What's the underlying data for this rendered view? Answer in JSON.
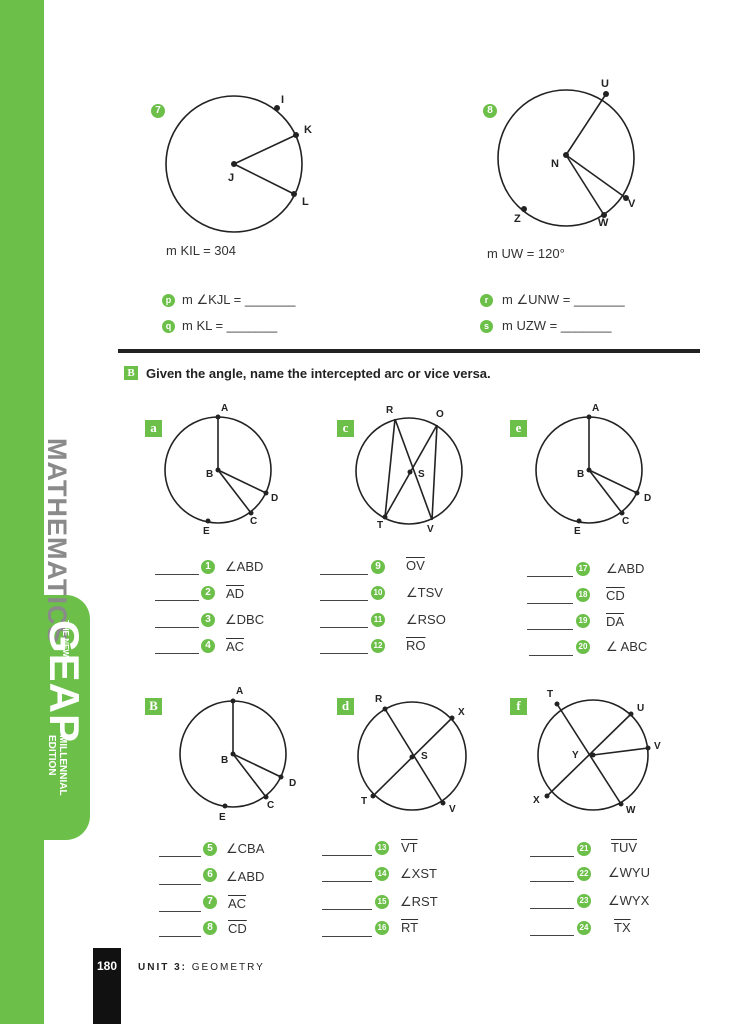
{
  "sidebar": {
    "subject": "MATHEMATICS",
    "brand_new": "THE NEW",
    "brand": "GEAP",
    "brand_edition_1": "MILLENNIAL",
    "brand_edition_2": "EDITION"
  },
  "problems_top": {
    "p7": {
      "number": "7",
      "given": "m KIL = 304",
      "points": [
        "I",
        "K",
        "J",
        "L"
      ]
    },
    "p8": {
      "number": "8",
      "given": "m UW = 120°",
      "points": [
        "U",
        "N",
        "V",
        "Z",
        "W"
      ]
    },
    "questions": [
      {
        "letter": "p",
        "text": "m ∠KJL = _______"
      },
      {
        "letter": "q",
        "text": "m KL = _______"
      },
      {
        "letter": "r",
        "text": "m ∠UNW = _______"
      },
      {
        "letter": "s",
        "text": "m UZW = _______"
      }
    ]
  },
  "section_b": {
    "badge": "B",
    "title": "Given the angle, name the intercepted arc or vice versa."
  },
  "figures": {
    "a": {
      "letter": "a",
      "points": [
        "A",
        "B",
        "D",
        "C",
        "E"
      ]
    },
    "c": {
      "letter": "c",
      "points": [
        "R",
        "O",
        "S",
        "T",
        "V"
      ]
    },
    "e": {
      "letter": "e",
      "points": [
        "A",
        "B",
        "D",
        "C",
        "E"
      ]
    },
    "B": {
      "letter": "B",
      "points": [
        "A",
        "B",
        "D",
        "C",
        "E"
      ]
    },
    "d": {
      "letter": "d",
      "points": [
        "R",
        "X",
        "S",
        "T",
        "V"
      ]
    },
    "f": {
      "letter": "f",
      "points": [
        "T",
        "U",
        "V",
        "Y",
        "X",
        "W"
      ]
    }
  },
  "items": [
    {
      "n": "1",
      "text": "∠ABD"
    },
    {
      "n": "2",
      "text": "AD"
    },
    {
      "n": "3",
      "text": "∠DBC"
    },
    {
      "n": "4",
      "text": "AC"
    },
    {
      "n": "9",
      "text": "OV"
    },
    {
      "n": "10",
      "text": "∠TSV"
    },
    {
      "n": "11",
      "text": "∠RSO"
    },
    {
      "n": "12",
      "text": "RO"
    },
    {
      "n": "17",
      "text": "∠ABD"
    },
    {
      "n": "18",
      "text": "CD"
    },
    {
      "n": "19",
      "text": "DA"
    },
    {
      "n": "20",
      "text": "∠ ABC"
    },
    {
      "n": "5",
      "text": "∠CBA"
    },
    {
      "n": "6",
      "text": "∠ABD"
    },
    {
      "n": "7",
      "text": "AC"
    },
    {
      "n": "8",
      "text": "CD"
    },
    {
      "n": "13",
      "text": "VT"
    },
    {
      "n": "14",
      "text": "∠XST"
    },
    {
      "n": "15",
      "text": "∠RST"
    },
    {
      "n": "16",
      "text": "RT"
    },
    {
      "n": "21",
      "text": "TUV"
    },
    {
      "n": "22",
      "text": "∠WYU"
    },
    {
      "n": "23",
      "text": "∠WYX"
    },
    {
      "n": "24",
      "text": "TX"
    }
  ],
  "footer": {
    "page": "180",
    "unit_bold": "UNIT 3:",
    "unit_rest": " GEOMETRY"
  },
  "colors": {
    "accent": "#6cc04a"
  }
}
